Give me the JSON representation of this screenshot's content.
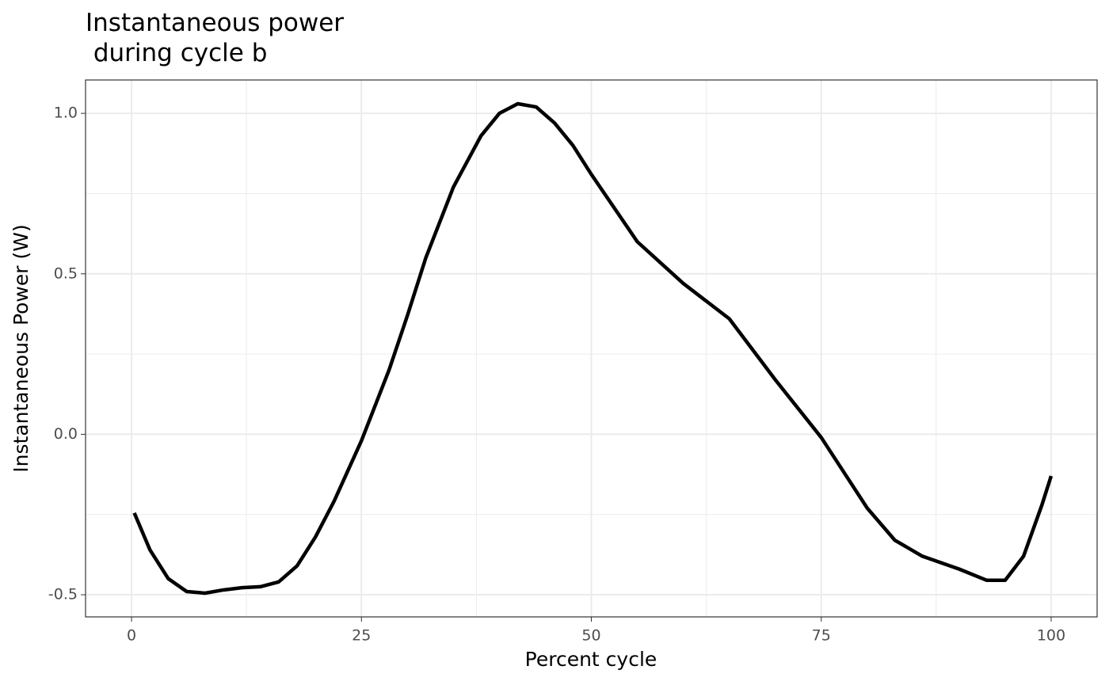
{
  "chart_data": {
    "type": "line",
    "title": "Instantaneous power\n during cycle b",
    "x_label": "Percent cycle",
    "y_label": "Instantaneous Power (W)",
    "x": [
      0.3,
      2,
      4,
      6,
      8,
      10,
      12,
      14,
      16,
      18,
      20,
      22,
      25,
      28,
      30,
      32,
      35,
      38,
      40,
      42,
      44,
      46,
      48,
      50,
      55,
      60,
      65,
      70,
      75,
      80,
      83,
      86,
      90,
      93,
      95,
      97,
      99,
      100
    ],
    "series": [
      {
        "name": "power",
        "color": "#000000",
        "values": [
          -0.245,
          -0.36,
          -0.45,
          -0.49,
          -0.495,
          -0.485,
          -0.478,
          -0.475,
          -0.46,
          -0.41,
          -0.32,
          -0.21,
          -0.02,
          0.2,
          0.37,
          0.55,
          0.77,
          0.93,
          1.0,
          1.03,
          1.02,
          0.97,
          0.9,
          0.81,
          0.6,
          0.47,
          0.36,
          0.17,
          -0.01,
          -0.23,
          -0.33,
          -0.38,
          -0.42,
          -0.455,
          -0.455,
          -0.38,
          -0.22,
          -0.13
        ]
      }
    ],
    "xlim": [
      -5,
      105
    ],
    "xticks": [
      0,
      25,
      50,
      75,
      100
    ],
    "ylim": [
      -0.569,
      1.104
    ],
    "yticks": [
      {
        "value": -0.5,
        "label": "-0.5"
      },
      {
        "value": 0,
        "label": "0.0"
      },
      {
        "value": 0.5,
        "label": "0.5"
      },
      {
        "value": 1,
        "label": "1.0"
      }
    ],
    "grid": true
  }
}
